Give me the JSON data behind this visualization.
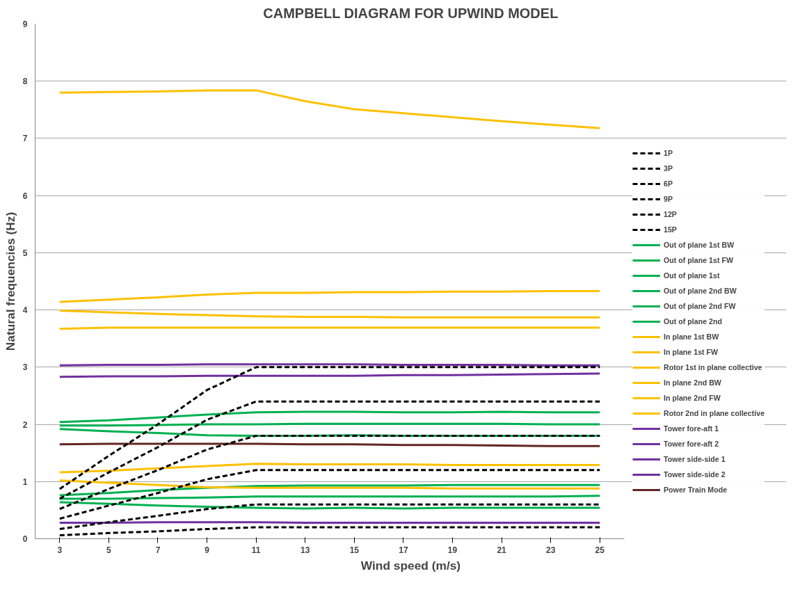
{
  "chart_data": {
    "type": "line",
    "title": "CAMPBELL DIAGRAM FOR UPWIND MODEL",
    "xlabel": "Wind speed (m/s)",
    "ylabel": "Natural frequencies (Hz)",
    "categories": [
      "3",
      "5",
      "7",
      "9",
      "11",
      "13",
      "15",
      "17",
      "19",
      "21",
      "23",
      "25"
    ],
    "ylim": [
      0,
      9
    ],
    "yticks": [
      0,
      1,
      2,
      3,
      4,
      5,
      6,
      7,
      8,
      9
    ],
    "grid": "y",
    "legend": "right",
    "series": [
      {
        "name": "1P",
        "color": "#000000",
        "line_style": "dashed",
        "values": [
          0.06,
          0.1,
          0.13,
          0.17,
          0.2,
          0.2,
          0.2,
          0.2,
          0.2,
          0.2,
          0.2,
          0.2
        ]
      },
      {
        "name": "3P",
        "color": "#000000",
        "line_style": "dashed",
        "values": [
          0.17,
          0.29,
          0.4,
          0.52,
          0.6,
          0.6,
          0.6,
          0.6,
          0.6,
          0.6,
          0.6,
          0.6
        ]
      },
      {
        "name": "6P",
        "color": "#000000",
        "line_style": "dashed",
        "values": [
          0.35,
          0.58,
          0.8,
          1.04,
          1.2,
          1.2,
          1.2,
          1.2,
          1.2,
          1.2,
          1.2,
          1.2
        ]
      },
      {
        "name": "9P",
        "color": "#000000",
        "line_style": "dashed",
        "values": [
          0.52,
          0.87,
          1.2,
          1.56,
          1.8,
          1.8,
          1.8,
          1.8,
          1.8,
          1.8,
          1.8,
          1.8
        ]
      },
      {
        "name": "12P",
        "color": "#000000",
        "line_style": "dashed",
        "values": [
          0.7,
          1.16,
          1.6,
          2.08,
          2.4,
          2.4,
          2.4,
          2.4,
          2.4,
          2.4,
          2.4,
          2.4
        ]
      },
      {
        "name": "15P",
        "color": "#000000",
        "line_style": "dashed",
        "values": [
          0.87,
          1.45,
          2.0,
          2.6,
          3.0,
          3.0,
          3.0,
          3.0,
          3.0,
          3.0,
          3.0,
          3.0
        ]
      },
      {
        "name": "Out of plane 1st BW",
        "color": "#00b050",
        "values": [
          0.64,
          0.61,
          0.58,
          0.56,
          0.54,
          0.53,
          0.54,
          0.53,
          0.54,
          0.54,
          0.54,
          0.54
        ]
      },
      {
        "name": "Out of plane 1st FW",
        "color": "#00b050",
        "values": [
          0.76,
          0.8,
          0.85,
          0.89,
          0.92,
          0.93,
          0.93,
          0.93,
          0.94,
          0.94,
          0.94,
          0.94
        ]
      },
      {
        "name": "Out of plane 1st",
        "color": "#00b050",
        "values": [
          0.7,
          0.7,
          0.71,
          0.72,
          0.74,
          0.74,
          0.74,
          0.74,
          0.74,
          0.74,
          0.74,
          0.75
        ]
      },
      {
        "name": "Out of plane 2nd BW",
        "color": "#00b050",
        "values": [
          1.92,
          1.88,
          1.85,
          1.81,
          1.8,
          1.8,
          1.81,
          1.8,
          1.8,
          1.8,
          1.8,
          1.8
        ]
      },
      {
        "name": "Out of plane 2nd FW",
        "color": "#00b050",
        "values": [
          2.04,
          2.07,
          2.12,
          2.17,
          2.21,
          2.22,
          2.22,
          2.21,
          2.21,
          2.22,
          2.21,
          2.21
        ]
      },
      {
        "name": "Out of plane 2nd",
        "color": "#00b050",
        "values": [
          1.98,
          1.98,
          1.99,
          2.0,
          2.0,
          2.01,
          2.01,
          2.01,
          2.01,
          2.01,
          2.0,
          2.0
        ]
      },
      {
        "name": "In plane 1st BW",
        "color": "#ffc000",
        "values": [
          1.02,
          0.98,
          0.94,
          0.9,
          0.89,
          0.89,
          0.89,
          0.89,
          0.88,
          0.88,
          0.88,
          0.88
        ]
      },
      {
        "name": "In plane 1st FW",
        "color": "#ffc000",
        "values": [
          1.16,
          1.19,
          1.23,
          1.27,
          1.31,
          1.3,
          1.3,
          1.3,
          1.29,
          1.29,
          1.29,
          1.29
        ]
      },
      {
        "name": "Rotor 1st in plane collective",
        "color": "#ffc000",
        "values": [
          3.67,
          3.69,
          3.69,
          3.69,
          3.69,
          3.69,
          3.69,
          3.69,
          3.69,
          3.69,
          3.69,
          3.69
        ]
      },
      {
        "name": "In plane 2nd BW",
        "color": "#ffc000",
        "values": [
          3.99,
          3.96,
          3.93,
          3.91,
          3.89,
          3.88,
          3.88,
          3.87,
          3.87,
          3.87,
          3.87,
          3.87
        ]
      },
      {
        "name": "In plane 2nd FW",
        "color": "#ffc000",
        "values": [
          4.14,
          4.18,
          4.22,
          4.27,
          4.3,
          4.3,
          4.31,
          4.31,
          4.32,
          4.32,
          4.33,
          4.33
        ]
      },
      {
        "name": "Rotor 2nd in plane collective",
        "color": "#ffc000",
        "values": [
          7.8,
          7.81,
          7.82,
          7.84,
          7.84,
          7.65,
          7.51,
          7.44,
          7.37,
          7.3,
          7.24,
          7.18
        ]
      },
      {
        "name": "Tower fore-aft 1",
        "color": "#7030a0",
        "values": [
          0.28,
          0.28,
          0.29,
          0.29,
          0.29,
          0.28,
          0.28,
          0.28,
          0.28,
          0.28,
          0.28,
          0.28
        ]
      },
      {
        "name": "Tower fore-aft 2",
        "color": "#7030a0",
        "values": [
          2.83,
          2.84,
          2.84,
          2.85,
          2.85,
          2.85,
          2.85,
          2.86,
          2.86,
          2.87,
          2.88,
          2.89
        ]
      },
      {
        "name": "Tower side-side 1",
        "color": "#7030a0",
        "values": [
          null,
          null,
          null,
          null,
          null,
          null,
          null,
          null,
          null,
          null,
          null,
          null
        ]
      },
      {
        "name": "Tower side-side 2",
        "color": "#7030a0",
        "values": [
          3.03,
          3.04,
          3.04,
          3.05,
          3.05,
          3.05,
          3.05,
          3.04,
          3.04,
          3.04,
          3.03,
          3.03
        ]
      },
      {
        "name": "Power Train Mode",
        "color": "#632523",
        "values": [
          1.65,
          1.66,
          1.66,
          1.66,
          1.66,
          1.65,
          1.65,
          1.64,
          1.64,
          1.63,
          1.62,
          1.62
        ]
      }
    ]
  }
}
